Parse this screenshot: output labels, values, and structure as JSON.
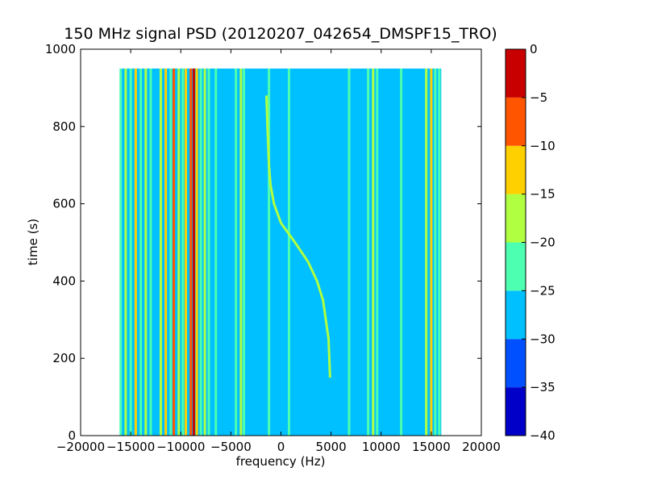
{
  "chart_data": {
    "type": "heatmap",
    "title": "150 MHz signal PSD (20120207_042654_DMSPF15_TRO)",
    "xlabel": "frequency (Hz)",
    "ylabel": "time (s)",
    "xlim": [
      -20000,
      20000
    ],
    "ylim": [
      0,
      1000
    ],
    "xticks": [
      -20000,
      -15000,
      -10000,
      -5000,
      0,
      5000,
      10000,
      15000,
      20000
    ],
    "yticks": [
      0,
      200,
      400,
      600,
      800,
      1000
    ],
    "data_extent": {
      "x": [
        -16000,
        16000
      ],
      "y": [
        0,
        950
      ]
    },
    "colorbar": {
      "min": -40,
      "max": 0,
      "ticks": [
        0,
        -5,
        -10,
        -15,
        -20,
        -25,
        -30,
        -35,
        -40
      ],
      "levels": [
        {
          "from": -40,
          "to": -35,
          "color": "#0000c8"
        },
        {
          "from": -35,
          "to": -30,
          "color": "#0050ff"
        },
        {
          "from": -30,
          "to": -25,
          "color": "#00c0ff"
        },
        {
          "from": -25,
          "to": -20,
          "color": "#4dffb0"
        },
        {
          "from": -20,
          "to": -15,
          "color": "#b0ff40"
        },
        {
          "from": -15,
          "to": -10,
          "color": "#ffd000"
        },
        {
          "from": -10,
          "to": -5,
          "color": "#ff5500"
        },
        {
          "from": -5,
          "to": 0,
          "color": "#c80000"
        }
      ]
    },
    "background_level": -27.5,
    "vertical_lines": [
      {
        "freq": -16000,
        "level": -22
      },
      {
        "freq": -15500,
        "level": -17
      },
      {
        "freq": -15000,
        "level": -22
      },
      {
        "freq": -14500,
        "level": -12
      },
      {
        "freq": -14000,
        "level": -22
      },
      {
        "freq": -13500,
        "level": -17
      },
      {
        "freq": -13000,
        "level": -22
      },
      {
        "freq": -12000,
        "level": -17
      },
      {
        "freq": -11500,
        "level": -12
      },
      {
        "freq": -11000,
        "level": -22
      },
      {
        "freq": -10700,
        "level": -7
      },
      {
        "freq": -10200,
        "level": -17
      },
      {
        "freq": -9800,
        "level": -22
      },
      {
        "freq": -9500,
        "level": -12
      },
      {
        "freq": -9000,
        "level": -7
      },
      {
        "freq": -8700,
        "level": -2
      },
      {
        "freq": -8400,
        "level": -12
      },
      {
        "freq": -8000,
        "level": -22
      },
      {
        "freq": -7600,
        "level": -17
      },
      {
        "freq": -7200,
        "level": -22
      },
      {
        "freq": -6500,
        "level": -22
      },
      {
        "freq": -4500,
        "level": -22
      },
      {
        "freq": -4000,
        "level": -17
      },
      {
        "freq": -3700,
        "level": -22
      },
      {
        "freq": -1200,
        "level": -22
      },
      {
        "freq": 800,
        "level": -22
      },
      {
        "freq": 6800,
        "level": -22
      },
      {
        "freq": 8700,
        "level": -22
      },
      {
        "freq": 9200,
        "level": -17
      },
      {
        "freq": 9600,
        "level": -22
      },
      {
        "freq": 12000,
        "level": -22
      },
      {
        "freq": 14500,
        "level": -17
      },
      {
        "freq": 15000,
        "level": -12
      },
      {
        "freq": 15400,
        "level": -22
      },
      {
        "freq": 15800,
        "level": -22
      }
    ],
    "doppler_trace": {
      "level": -17,
      "points": [
        {
          "t": 150,
          "f": 4900
        },
        {
          "t": 250,
          "f": 4750
        },
        {
          "t": 350,
          "f": 4200
        },
        {
          "t": 400,
          "f": 3600
        },
        {
          "t": 450,
          "f": 2700
        },
        {
          "t": 500,
          "f": 1400
        },
        {
          "t": 550,
          "f": 0
        },
        {
          "t": 600,
          "f": -700
        },
        {
          "t": 650,
          "f": -1050
        },
        {
          "t": 700,
          "f": -1200
        },
        {
          "t": 800,
          "f": -1350
        },
        {
          "t": 880,
          "f": -1450
        }
      ]
    }
  }
}
